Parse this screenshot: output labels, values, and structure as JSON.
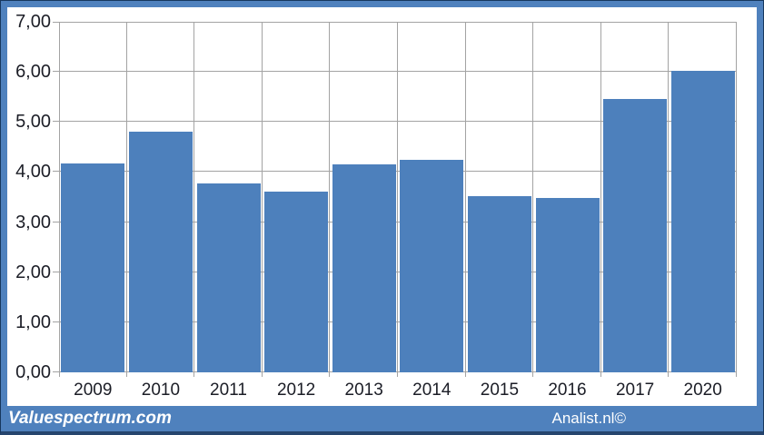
{
  "chart_data": {
    "type": "bar",
    "categories": [
      "2009",
      "2010",
      "2011",
      "2012",
      "2013",
      "2014",
      "2015",
      "2016",
      "2017",
      "2020"
    ],
    "values": [
      4.18,
      4.81,
      3.78,
      3.61,
      4.15,
      4.25,
      3.52,
      3.49,
      5.46,
      6.03
    ],
    "title": "",
    "xlabel": "",
    "ylabel": "",
    "ylim": [
      0,
      7
    ],
    "ytick_step": 1,
    "ytick_labels": [
      "0,00",
      "1,00",
      "2,00",
      "3,00",
      "4,00",
      "5,00",
      "6,00",
      "7,00"
    ],
    "grid": true,
    "legend": "none",
    "bar_color": "#4d80bc"
  },
  "colors": {
    "bar": "#4d80bc",
    "frame": "#4f81bd",
    "gridline": "#a3a3a3",
    "footer_bg": "#4f81bd",
    "label_text": "#1b1d26",
    "footer_text": "#ffffff"
  },
  "footer": {
    "brand_left": "Valuespectrum.com",
    "brand_right": "Analist.nl©"
  }
}
